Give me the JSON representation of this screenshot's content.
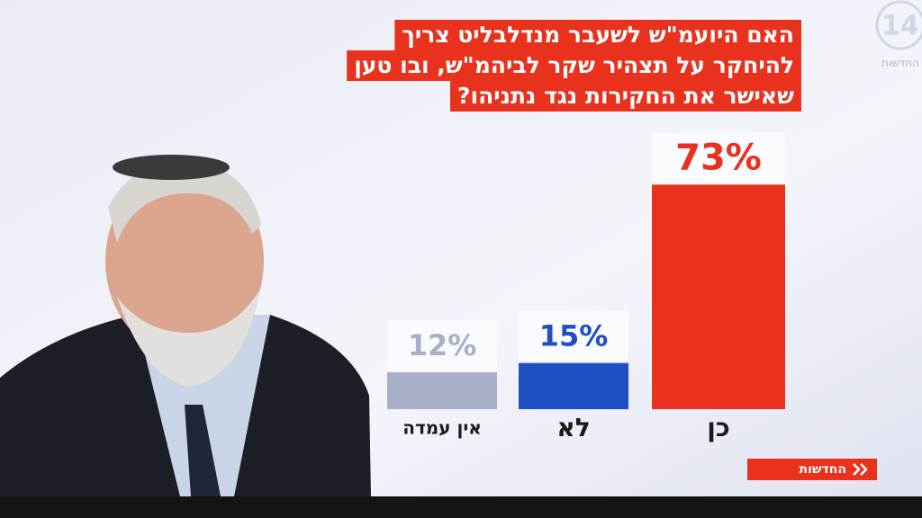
{
  "chart_data": {
    "type": "bar",
    "title_lines": [
      "האם היועמ\"ש לשעבר מנדלבליט צריך",
      "להיחקר על תצהיר שקר לביהמ\"ש, ובו טען",
      "שאישר את החקירות נגד נתניהו?"
    ],
    "categories": [
      "כן",
      "לא",
      "אין עמדה"
    ],
    "values": [
      73,
      15,
      12
    ],
    "value_labels": [
      "73%",
      "15%",
      "12%"
    ],
    "colors": [
      "#e8321e",
      "#1f4fc2",
      "#a7afc9"
    ]
  },
  "logo": {
    "number": "14",
    "name": "החדשות"
  },
  "footer": {
    "label": "החדשות"
  }
}
